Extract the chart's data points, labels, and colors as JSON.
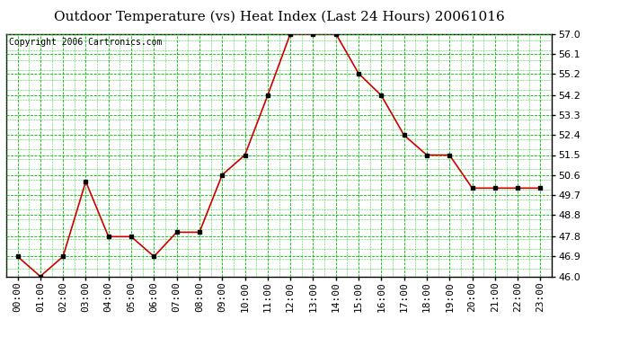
{
  "title": "Outdoor Temperature (vs) Heat Index (Last 24 Hours) 20061016",
  "copyright_text": "Copyright 2006 Cartronics.com",
  "x_labels": [
    "00:00",
    "01:00",
    "02:00",
    "03:00",
    "04:00",
    "05:00",
    "06:00",
    "07:00",
    "08:00",
    "09:00",
    "10:00",
    "11:00",
    "12:00",
    "13:00",
    "14:00",
    "15:00",
    "16:00",
    "17:00",
    "18:00",
    "19:00",
    "20:00",
    "21:00",
    "22:00",
    "23:00"
  ],
  "y_values": [
    46.9,
    46.0,
    46.9,
    50.3,
    47.8,
    47.8,
    46.9,
    48.0,
    48.0,
    50.6,
    51.5,
    54.2,
    57.0,
    57.0,
    57.0,
    55.2,
    54.2,
    52.4,
    51.5,
    51.5,
    50.0,
    50.0,
    50.0,
    50.0
  ],
  "ylim_min": 46.0,
  "ylim_max": 57.0,
  "yticks": [
    46.0,
    46.9,
    47.8,
    48.8,
    49.7,
    50.6,
    51.5,
    52.4,
    53.3,
    54.2,
    55.2,
    56.1,
    57.0
  ],
  "line_color": "#cc0000",
  "marker_color": "#000000",
  "bg_color": "#ffffff",
  "plot_bg_color": "#ffffff",
  "grid_color_major": "#00bb00",
  "grid_color_minor": "#00bb00",
  "title_color": "#000000",
  "axis_color": "#000000",
  "border_color": "#000000",
  "title_fontsize": 11,
  "tick_fontsize": 8,
  "copyright_fontsize": 7
}
